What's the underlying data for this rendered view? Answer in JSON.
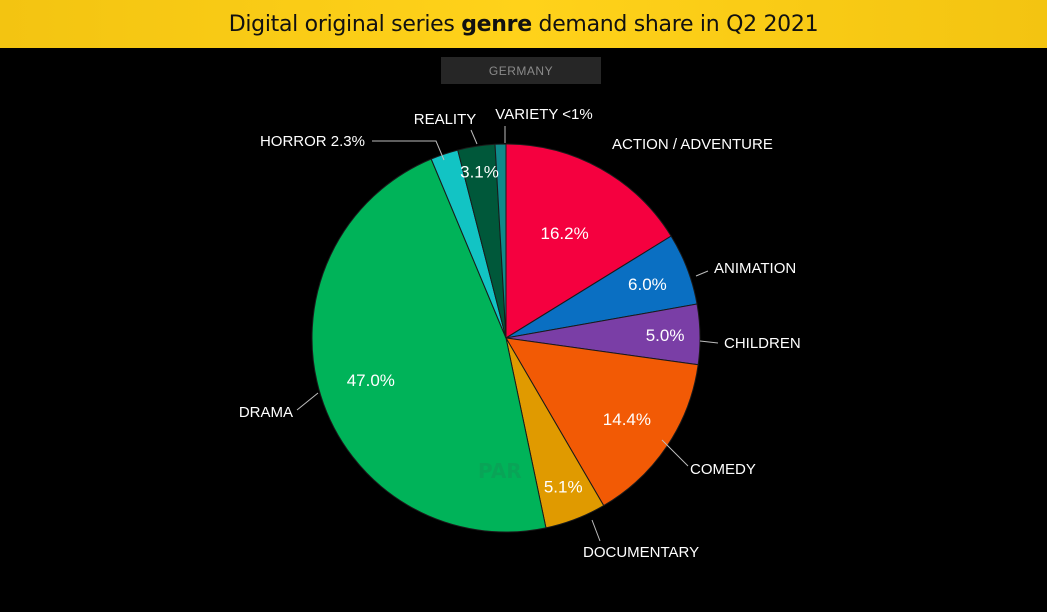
{
  "title": {
    "prefix": "Digital original series ",
    "bold": "genre",
    "suffix": " demand share in Q2 2021"
  },
  "subtitle": "GERMANY",
  "watermark": "PAR",
  "chart_data": {
    "type": "pie",
    "title": "Digital original series genre demand share in Q2 2021",
    "subtitle": "GERMANY",
    "start_angle_deg": 0,
    "direction": "clockwise",
    "slices": [
      {
        "label": "ACTION / ADVENTURE",
        "value": 16.2,
        "value_label": "16.2%",
        "color": "#f5003f"
      },
      {
        "label": "ANIMATION",
        "value": 6.0,
        "value_label": "6.0%",
        "color": "#0a6fc2"
      },
      {
        "label": "CHILDREN",
        "value": 5.0,
        "value_label": "5.0%",
        "color": "#7a3ea6"
      },
      {
        "label": "COMEDY",
        "value": 14.4,
        "value_label": "14.4%",
        "color": "#f25a05"
      },
      {
        "label": "DOCUMENTARY",
        "value": 5.1,
        "value_label": "5.1%",
        "color": "#e09a00"
      },
      {
        "label": "DRAMA",
        "value": 47.0,
        "value_label": "47.0%",
        "color": "#00b359"
      },
      {
        "label": "HORROR",
        "value": 2.3,
        "value_label": "HORROR 2.3%",
        "color": "#12c4c4"
      },
      {
        "label": "REALITY",
        "value": 3.1,
        "value_label": "3.1%",
        "color": "#00583a"
      },
      {
        "label": "VARIETY",
        "value": 0.9,
        "value_label": "VARIETY <1%",
        "color": "#0f8a8a"
      }
    ]
  }
}
